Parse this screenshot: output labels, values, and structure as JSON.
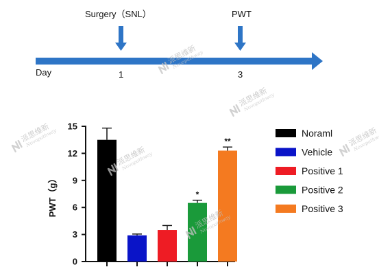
{
  "timeline": {
    "day_label": "Day",
    "events": [
      {
        "label": "Surgery（SNL）",
        "day": "1"
      },
      {
        "label": "PWT",
        "day": "3"
      }
    ],
    "arrow_color": "#2e75c6",
    "marker_color": "#2e75c6"
  },
  "watermark": {
    "text": "派思维新",
    "subtext": "Novopathway"
  },
  "chart_data": {
    "type": "bar",
    "ylabel": "PWT（g）",
    "ylim": [
      0,
      15
    ],
    "yticks": [
      0,
      3,
      6,
      9,
      12,
      15
    ],
    "grid": false,
    "legend_position": "right",
    "series": [
      {
        "name": "Noraml",
        "value": 13.5,
        "error": 1.3,
        "color": "#000000",
        "sig": ""
      },
      {
        "name": "Vehicle",
        "value": 2.9,
        "error": 0.15,
        "color": "#0a14c8",
        "sig": ""
      },
      {
        "name": "Positive 1",
        "value": 3.5,
        "error": 0.5,
        "color": "#ee1c24",
        "sig": ""
      },
      {
        "name": "Positive 2",
        "value": 6.5,
        "error": 0.3,
        "color": "#1a9a3a",
        "sig": "*"
      },
      {
        "name": "Positive 3",
        "value": 12.3,
        "error": 0.4,
        "color": "#f47a20",
        "sig": "**"
      }
    ]
  }
}
